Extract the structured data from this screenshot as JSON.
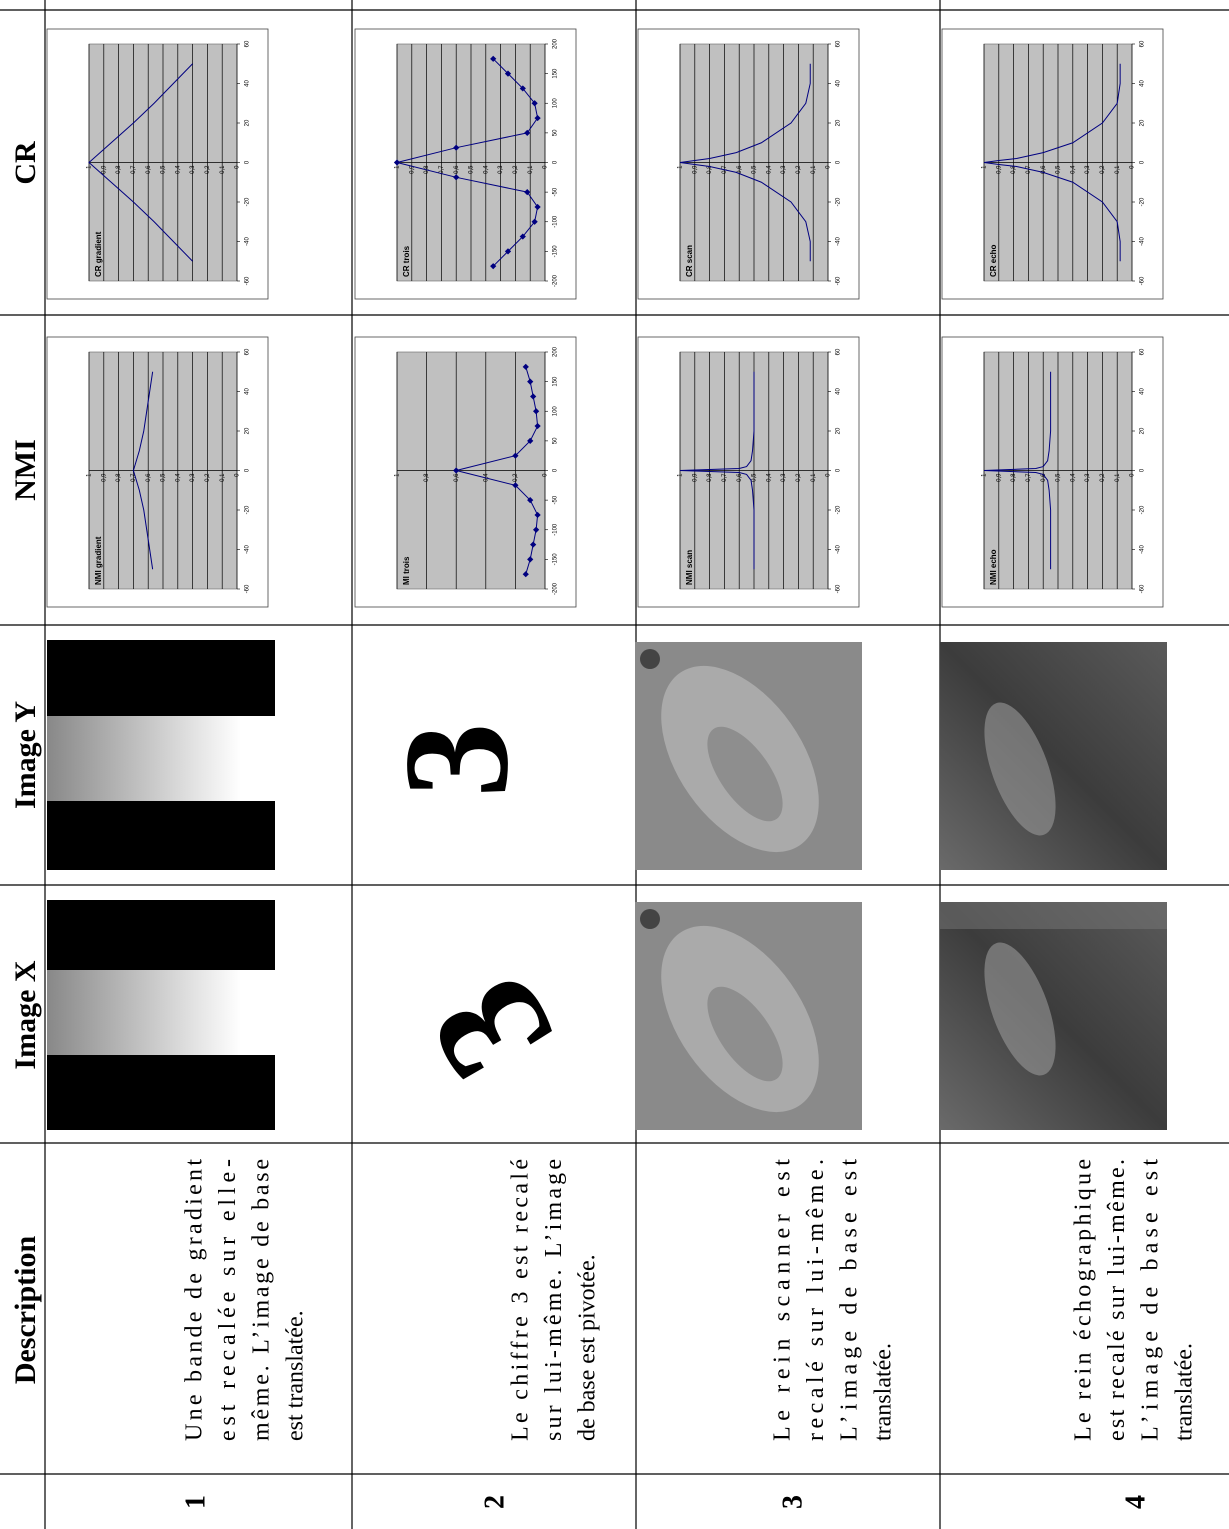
{
  "header": {
    "number": "",
    "description": "Description",
    "image_x": "Image X",
    "image_y": "Image Y",
    "nmi": "NMI",
    "cr": "CR"
  },
  "rows": [
    {
      "number": "1",
      "description": [
        "Une bande de gradient",
        "est recalée sur elle-",
        "même. L’image de base",
        "est translatée."
      ],
      "nmi": {
        "type": "line",
        "title": "NMI gradient",
        "color": "#000080",
        "markers": false,
        "x": [
          -50,
          -40,
          -30,
          -20,
          -10,
          0,
          10,
          20,
          30,
          40,
          50
        ],
        "values": [
          0.57,
          0.59,
          0.61,
          0.63,
          0.66,
          0.7,
          0.66,
          0.63,
          0.61,
          0.59,
          0.57
        ],
        "xlim": [
          -60,
          60
        ],
        "xticks": [
          -60,
          -40,
          -20,
          0,
          20,
          40,
          60
        ],
        "ylim": [
          0,
          1
        ],
        "yticks": [
          0,
          {
            "value": 0.1,
            "label": "0,1"
          },
          {
            "value": 0.2,
            "label": "0,2"
          },
          {
            "value": 0.3,
            "label": "0,3"
          },
          {
            "value": 0.4,
            "label": "0,4"
          },
          {
            "value": 0.5,
            "label": "0,5"
          },
          {
            "value": 0.6,
            "label": "0,6"
          },
          {
            "value": 0.7,
            "label": "0,7"
          },
          {
            "value": 0.8,
            "label": "0,8"
          },
          {
            "value": 0.9,
            "label": "0,9"
          },
          1
        ]
      },
      "cr": {
        "type": "line",
        "title": "CR gradient",
        "color": "#000080",
        "markers": false,
        "x": [
          -50,
          -40,
          -30,
          -20,
          -10,
          0,
          10,
          20,
          30,
          40,
          50
        ],
        "values": [
          0.3,
          0.43,
          0.56,
          0.7,
          0.85,
          1,
          0.85,
          0.7,
          0.56,
          0.43,
          0.3
        ],
        "xlim": [
          -60,
          60
        ],
        "xticks": [
          -60,
          -40,
          -20,
          0,
          20,
          40,
          60
        ],
        "ylim": [
          0,
          1
        ],
        "yticks": [
          0,
          {
            "value": 0.1,
            "label": "0,1"
          },
          {
            "value": 0.2,
            "label": "0,2"
          },
          {
            "value": 0.3,
            "label": "0,3"
          },
          {
            "value": 0.4,
            "label": "0,4"
          },
          {
            "value": 0.5,
            "label": "0,5"
          },
          {
            "value": 0.6,
            "label": "0,6"
          },
          {
            "value": 0.7,
            "label": "0,7"
          },
          {
            "value": 0.8,
            "label": "0,8"
          },
          {
            "value": 0.9,
            "label": "0,9"
          },
          1
        ]
      }
    },
    {
      "number": "2",
      "description": [
        "Le chiffre 3 est recalé",
        "sur lui-même. L’image",
        "de base est pivotée."
      ],
      "nmi": {
        "type": "line",
        "title": "MI trois",
        "color": "#000080",
        "markers": true,
        "x": [
          -175,
          -150,
          -125,
          -100,
          -75,
          -50,
          -25,
          0,
          25,
          50,
          75,
          100,
          125,
          150,
          175
        ],
        "values": [
          0.13,
          0.1,
          0.08,
          0.06,
          0.05,
          0.1,
          0.2,
          0.6,
          0.2,
          0.1,
          0.05,
          0.06,
          0.08,
          0.1,
          0.13
        ],
        "xlim": [
          -200,
          200
        ],
        "xticks": [
          -200,
          -150,
          -100,
          -50,
          0,
          50,
          100,
          150,
          200
        ],
        "ylim": [
          0,
          1
        ],
        "yticks": [
          0,
          {
            "value": 0.2,
            "label": "0,2"
          },
          {
            "value": 0.4,
            "label": "0,4"
          },
          {
            "value": 0.6,
            "label": "0,6"
          },
          {
            "value": 0.8,
            "label": "0,8"
          },
          1
        ]
      },
      "cr": {
        "type": "line",
        "title": "CR trois",
        "color": "#000080",
        "markers": true,
        "x": [
          -175,
          -150,
          -125,
          -100,
          -75,
          -50,
          -25,
          0,
          25,
          50,
          75,
          100,
          125,
          150,
          175
        ],
        "values": [
          0.35,
          0.25,
          0.15,
          0.07,
          0.05,
          0.12,
          0.6,
          1,
          0.6,
          0.12,
          0.05,
          0.07,
          0.15,
          0.25,
          0.35
        ],
        "xlim": [
          -200,
          200
        ],
        "xticks": [
          -200,
          -150,
          -100,
          -50,
          0,
          50,
          100,
          150,
          200
        ],
        "ylim": [
          0,
          1
        ],
        "yticks": [
          0,
          {
            "value": 0.1,
            "label": "0,1"
          },
          {
            "value": 0.2,
            "label": "0,2"
          },
          {
            "value": 0.3,
            "label": "0,3"
          },
          {
            "value": 0.4,
            "label": "0,4"
          },
          {
            "value": 0.5,
            "label": "0,5"
          },
          {
            "value": 0.6,
            "label": "0,6"
          },
          {
            "value": 0.7,
            "label": "0,7"
          },
          {
            "value": 0.8,
            "label": "0,8"
          },
          {
            "value": 0.9,
            "label": "0,9"
          },
          1
        ]
      }
    },
    {
      "number": "3",
      "description": [
        "Le rein scanner est",
        "recalé sur lui-même.",
        "L’image de base est",
        "translatée."
      ],
      "nmi": {
        "type": "line",
        "title": "NMI scan",
        "color": "#000080",
        "markers": false,
        "x": [
          -50,
          -40,
          -30,
          -20,
          -10,
          -5,
          -2,
          -1,
          0,
          1,
          2,
          5,
          10,
          20,
          30,
          40,
          50
        ],
        "values": [
          0.5,
          0.5,
          0.5,
          0.5,
          0.51,
          0.52,
          0.55,
          0.6,
          1,
          0.6,
          0.55,
          0.52,
          0.51,
          0.5,
          0.5,
          0.5,
          0.5
        ],
        "xlim": [
          -60,
          60
        ],
        "xticks": [
          -60,
          -40,
          -20,
          0,
          20,
          40,
          60
        ],
        "ylim": [
          0,
          1
        ],
        "yticks": [
          0,
          {
            "value": 0.1,
            "label": "0,1"
          },
          {
            "value": 0.2,
            "label": "0,2"
          },
          {
            "value": 0.3,
            "label": "0,3"
          },
          {
            "value": 0.4,
            "label": "0,4"
          },
          {
            "value": 0.5,
            "label": "0,5"
          },
          {
            "value": 0.6,
            "label": "0,6"
          },
          {
            "value": 0.7,
            "label": "0,7"
          },
          {
            "value": 0.8,
            "label": "0,8"
          },
          {
            "value": 0.9,
            "label": "0,9"
          },
          1
        ]
      },
      "cr": {
        "type": "line",
        "title": "CR scan",
        "color": "#000080",
        "markers": false,
        "x": [
          -50,
          -40,
          -30,
          -20,
          -10,
          -5,
          -2,
          -1,
          0,
          1,
          2,
          5,
          10,
          20,
          30,
          40,
          50
        ],
        "values": [
          0.12,
          0.12,
          0.15,
          0.25,
          0.45,
          0.62,
          0.8,
          0.9,
          1,
          0.9,
          0.8,
          0.62,
          0.45,
          0.25,
          0.15,
          0.12,
          0.12
        ],
        "xlim": [
          -60,
          60
        ],
        "xticks": [
          -60,
          -40,
          -20,
          0,
          20,
          40,
          60
        ],
        "ylim": [
          0,
          1
        ],
        "yticks": [
          0,
          {
            "value": 0.1,
            "label": "0,1"
          },
          {
            "value": 0.2,
            "label": "0,2"
          },
          {
            "value": 0.3,
            "label": "0,3"
          },
          {
            "value": 0.4,
            "label": "0,4"
          },
          {
            "value": 0.5,
            "label": "0,5"
          },
          {
            "value": 0.6,
            "label": "0,6"
          },
          {
            "value": 0.7,
            "label": "0,7"
          },
          {
            "value": 0.8,
            "label": "0,8"
          },
          {
            "value": 0.9,
            "label": "0,9"
          },
          1
        ]
      }
    },
    {
      "number": "4",
      "description": [
        "Le rein échographique",
        "est recalé sur lui-même.",
        "L’image de base est",
        "translatée."
      ],
      "nmi": {
        "type": "line",
        "title": "NMI echo",
        "color": "#000080",
        "markers": false,
        "x": [
          -50,
          -40,
          -30,
          -20,
          -10,
          -5,
          -2,
          -1,
          0,
          1,
          2,
          5,
          10,
          20,
          30,
          40,
          50
        ],
        "values": [
          0.55,
          0.55,
          0.55,
          0.55,
          0.56,
          0.57,
          0.6,
          0.65,
          1,
          0.65,
          0.6,
          0.57,
          0.56,
          0.55,
          0.55,
          0.55,
          0.55
        ],
        "xlim": [
          -60,
          60
        ],
        "xticks": [
          -60,
          -40,
          -20,
          0,
          20,
          40,
          60
        ],
        "ylim": [
          0,
          1
        ],
        "yticks": [
          0,
          {
            "value": 0.1,
            "label": "0,1"
          },
          {
            "value": 0.2,
            "label": "0,2"
          },
          {
            "value": 0.3,
            "label": "0,3"
          },
          {
            "value": 0.4,
            "label": "0,4"
          },
          {
            "value": 0.5,
            "label": "0,5"
          },
          {
            "value": 0.6,
            "label": "0,6"
          },
          {
            "value": 0.7,
            "label": "0,7"
          },
          {
            "value": 0.8,
            "label": "0,8"
          },
          {
            "value": 0.9,
            "label": "0,9"
          },
          1
        ]
      },
      "cr": {
        "type": "line",
        "title": "CR echo",
        "color": "#000080",
        "markers": false,
        "x": [
          -50,
          -40,
          -30,
          -20,
          -10,
          -5,
          -2,
          -1,
          0,
          1,
          2,
          5,
          10,
          20,
          30,
          40,
          50
        ],
        "values": [
          0.08,
          0.08,
          0.1,
          0.2,
          0.4,
          0.6,
          0.78,
          0.9,
          1,
          0.9,
          0.78,
          0.6,
          0.4,
          0.2,
          0.1,
          0.08,
          0.08
        ],
        "xlim": [
          -60,
          60
        ],
        "xticks": [
          -60,
          -40,
          -20,
          0,
          20,
          40,
          60
        ],
        "ylim": [
          0,
          1
        ],
        "yticks": [
          0,
          {
            "value": 0.1,
            "label": "0,1"
          },
          {
            "value": 0.2,
            "label": "0,2"
          },
          {
            "value": 0.3,
            "label": "0,3"
          },
          {
            "value": 0.4,
            "label": "0,4"
          },
          {
            "value": 0.5,
            "label": "0,5"
          },
          {
            "value": 0.6,
            "label": "0,6"
          },
          {
            "value": 0.7,
            "label": "0,7"
          },
          {
            "value": 0.8,
            "label": "0,8"
          },
          {
            "value": 0.9,
            "label": "0,9"
          },
          1
        ]
      }
    }
  ]
}
